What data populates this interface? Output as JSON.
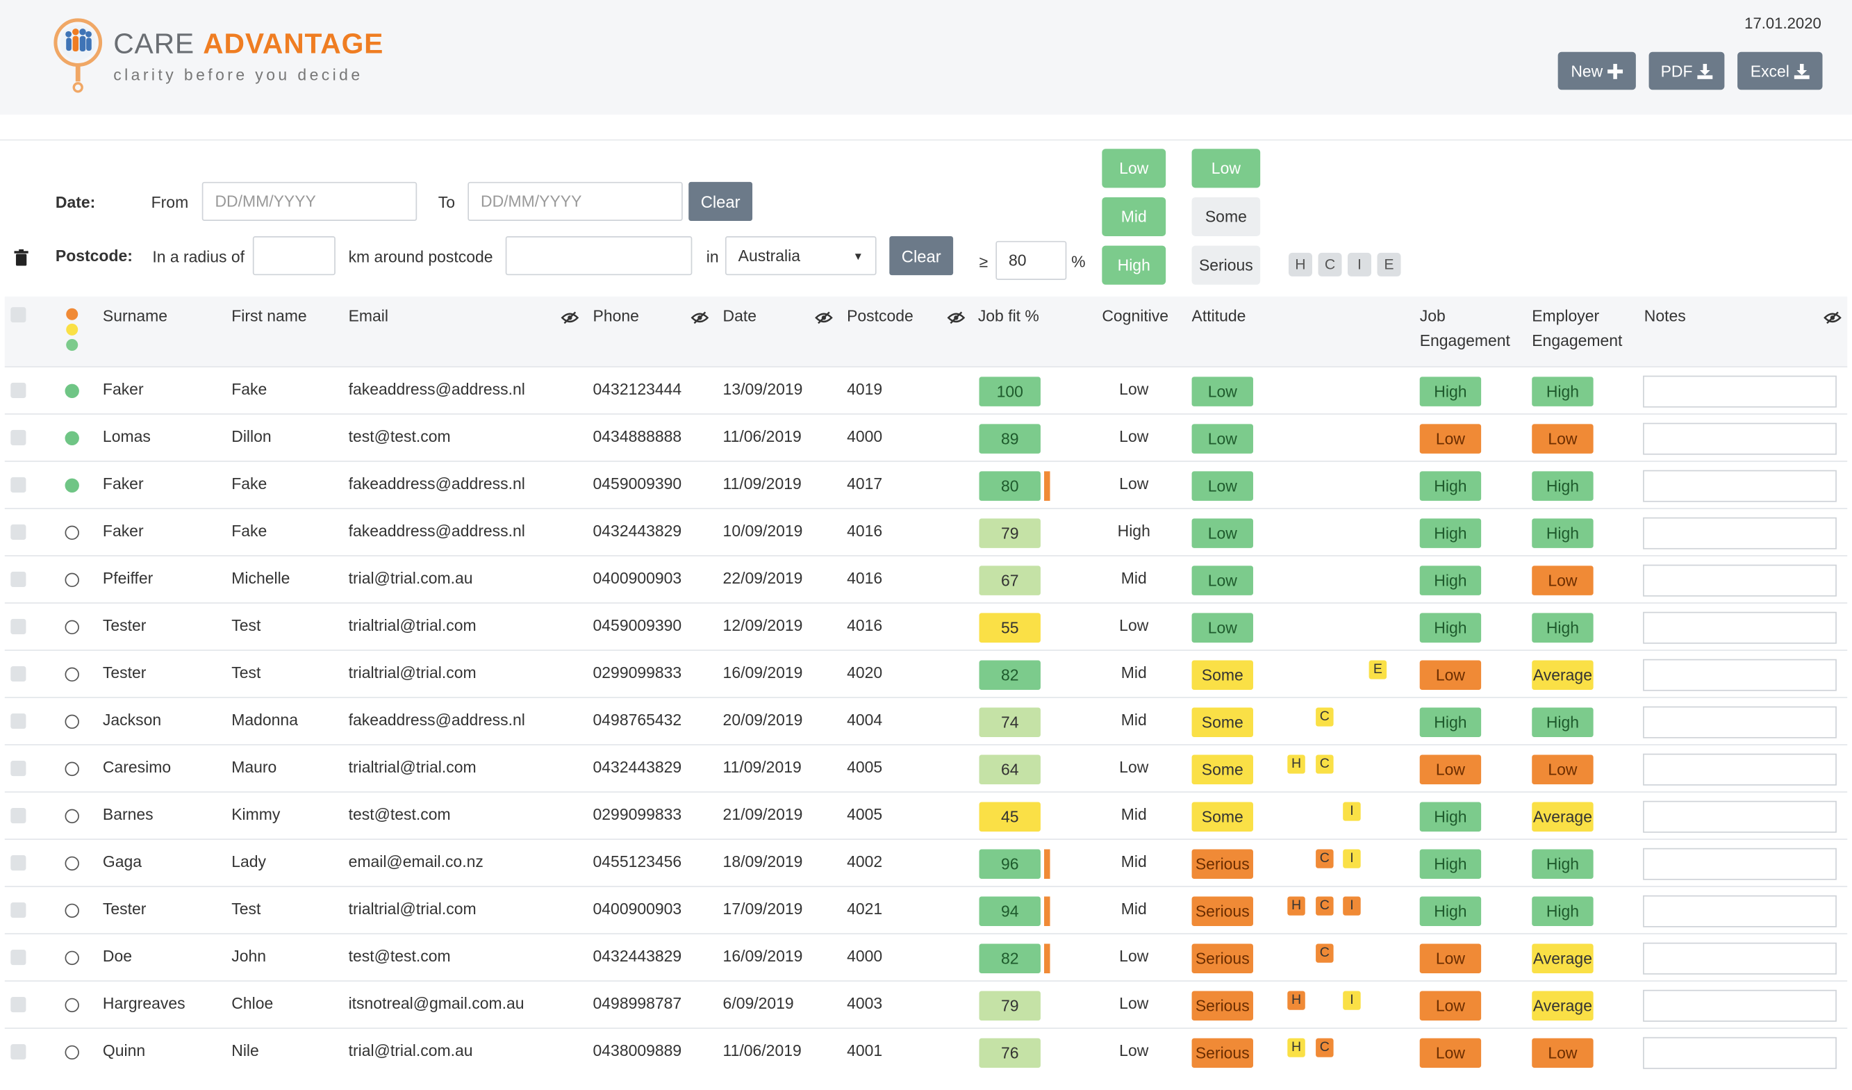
{
  "app": {
    "brand_part1": "CARE ",
    "brand_part2": "ADVANTAGE",
    "tagline": "clarity before you decide",
    "date": "17.01.2020",
    "buttons": {
      "new": "New",
      "pdf": "PDF",
      "excel": "Excel"
    }
  },
  "filters": {
    "date_label": "Date:",
    "from_label": "From",
    "from_placeholder": "DD/MM/YYYY",
    "to_label": "To",
    "to_placeholder": "DD/MM/YYYY",
    "clear": "Clear",
    "postcode_label": "Postcode:",
    "radius_label": "In a radius of",
    "km_label": "km around postcode",
    "in_label": "in",
    "country": "Australia",
    "clear2": "Clear",
    "gte": "≥",
    "jobfit_value": "80",
    "percent": "%",
    "cognitive_options": [
      "Low",
      "Mid",
      "High"
    ],
    "attitude_options": [
      "Low",
      "Some",
      "Serious"
    ],
    "chips": [
      "H",
      "C",
      "I",
      "E"
    ]
  },
  "colors": {
    "green": "#7ccb8c",
    "light_green": "#c5e2a6",
    "yellow": "#fae046",
    "orange": "#f08a36",
    "button": "#6c7a89"
  },
  "table": {
    "headers": {
      "surname": "Surname",
      "first_name": "First name",
      "email": "Email",
      "phone": "Phone",
      "date": "Date",
      "postcode": "Postcode",
      "job_fit": "Job fit %",
      "cognitive": "Cognitive",
      "attitude": "Attitude",
      "job_eng_1": "Job",
      "job_eng_2": "Engagement",
      "emp_eng_1": "Employer",
      "emp_eng_2": "Engagement",
      "notes": "Notes"
    },
    "rows": [
      {
        "status": "fill",
        "surname": "Faker",
        "first": "Fake",
        "email": "fakeaddress@address.nl",
        "phone": "0432123444",
        "date": "13/09/2019",
        "postcode": "4019",
        "jobfit": "100",
        "jobfit_c": "g",
        "jobfit_flag": false,
        "cognitive": "Low",
        "attitude": "Low",
        "attitude_c": "g",
        "flags": [],
        "job_eng": "High",
        "job_eng_c": "g",
        "emp_eng": "High",
        "emp_eng_c": "g"
      },
      {
        "status": "fill",
        "surname": "Lomas",
        "first": "Dillon",
        "email": "test@test.com",
        "phone": "0434888888",
        "date": "11/06/2019",
        "postcode": "4000",
        "jobfit": "89",
        "jobfit_c": "g",
        "jobfit_flag": false,
        "cognitive": "Low",
        "attitude": "Low",
        "attitude_c": "g",
        "flags": [],
        "job_eng": "Low",
        "job_eng_c": "o",
        "emp_eng": "Low",
        "emp_eng_c": "o"
      },
      {
        "status": "fill",
        "surname": "Faker",
        "first": "Fake",
        "email": "fakeaddress@address.nl",
        "phone": "0459009390",
        "date": "11/09/2019",
        "postcode": "4017",
        "jobfit": "80",
        "jobfit_c": "g",
        "jobfit_flag": true,
        "cognitive": "Low",
        "attitude": "Low",
        "attitude_c": "g",
        "flags": [],
        "job_eng": "High",
        "job_eng_c": "g",
        "emp_eng": "High",
        "emp_eng_c": "g"
      },
      {
        "status": "open",
        "surname": "Faker",
        "first": "Fake",
        "email": "fakeaddress@address.nl",
        "phone": "0432443829",
        "date": "10/09/2019",
        "postcode": "4016",
        "jobfit": "79",
        "jobfit_c": "lg",
        "jobfit_flag": false,
        "cognitive": "High",
        "attitude": "Low",
        "attitude_c": "g",
        "flags": [],
        "job_eng": "High",
        "job_eng_c": "g",
        "emp_eng": "High",
        "emp_eng_c": "g"
      },
      {
        "status": "open",
        "surname": "Pfeiffer",
        "first": "Michelle",
        "email": "trial@trial.com.au",
        "phone": "0400900903",
        "date": "22/09/2019",
        "postcode": "4016",
        "jobfit": "67",
        "jobfit_c": "lg",
        "jobfit_flag": false,
        "cognitive": "Mid",
        "attitude": "Low",
        "attitude_c": "g",
        "flags": [],
        "job_eng": "High",
        "job_eng_c": "g",
        "emp_eng": "Low",
        "emp_eng_c": "o"
      },
      {
        "status": "open",
        "surname": "Tester",
        "first": "Test",
        "email": "trialtrial@trial.com",
        "phone": "0459009390",
        "date": "12/09/2019",
        "postcode": "4016",
        "jobfit": "55",
        "jobfit_c": "y",
        "jobfit_flag": false,
        "cognitive": "Low",
        "attitude": "Low",
        "attitude_c": "g",
        "flags": [],
        "job_eng": "High",
        "job_eng_c": "g",
        "emp_eng": "High",
        "emp_eng_c": "g"
      },
      {
        "status": "open",
        "surname": "Tester",
        "first": "Test",
        "email": "trialtrial@trial.com",
        "phone": "0299099833",
        "date": "16/09/2019",
        "postcode": "4020",
        "jobfit": "82",
        "jobfit_c": "g",
        "jobfit_flag": false,
        "cognitive": "Mid",
        "attitude": "Some",
        "attitude_c": "y",
        "flags": [
          {
            "t": "E",
            "c": "y",
            "slot": 3
          }
        ],
        "job_eng": "Low",
        "job_eng_c": "o",
        "emp_eng": "Average",
        "emp_eng_c": "y"
      },
      {
        "status": "open",
        "surname": "Jackson",
        "first": "Madonna",
        "email": "fakeaddress@address.nl",
        "phone": "0498765432",
        "date": "20/09/2019",
        "postcode": "4004",
        "jobfit": "74",
        "jobfit_c": "lg",
        "jobfit_flag": false,
        "cognitive": "Mid",
        "attitude": "Some",
        "attitude_c": "y",
        "flags": [
          {
            "t": "C",
            "c": "y",
            "slot": 1
          }
        ],
        "job_eng": "High",
        "job_eng_c": "g",
        "emp_eng": "High",
        "emp_eng_c": "g"
      },
      {
        "status": "open",
        "surname": "Caresimo",
        "first": "Mauro",
        "email": "trialtrial@trial.com",
        "phone": "0432443829",
        "date": "11/09/2019",
        "postcode": "4005",
        "jobfit": "64",
        "jobfit_c": "lg",
        "jobfit_flag": false,
        "cognitive": "Low",
        "attitude": "Some",
        "attitude_c": "y",
        "flags": [
          {
            "t": "H",
            "c": "y",
            "slot": 0
          },
          {
            "t": "C",
            "c": "y",
            "slot": 1
          }
        ],
        "job_eng": "Low",
        "job_eng_c": "o",
        "emp_eng": "Low",
        "emp_eng_c": "o"
      },
      {
        "status": "open",
        "surname": "Barnes",
        "first": "Kimmy",
        "email": "test@test.com",
        "phone": "0299099833",
        "date": "21/09/2019",
        "postcode": "4005",
        "jobfit": "45",
        "jobfit_c": "y",
        "jobfit_flag": false,
        "cognitive": "Mid",
        "attitude": "Some",
        "attitude_c": "y",
        "flags": [
          {
            "t": "I",
            "c": "y",
            "slot": 2
          }
        ],
        "job_eng": "High",
        "job_eng_c": "g",
        "emp_eng": "Average",
        "emp_eng_c": "y"
      },
      {
        "status": "open",
        "surname": "Gaga",
        "first": "Lady",
        "email": "email@email.co.nz",
        "phone": "0455123456",
        "date": "18/09/2019",
        "postcode": "4002",
        "jobfit": "96",
        "jobfit_c": "g",
        "jobfit_flag": true,
        "cognitive": "Mid",
        "attitude": "Serious",
        "attitude_c": "o",
        "flags": [
          {
            "t": "C",
            "c": "o",
            "slot": 1
          },
          {
            "t": "I",
            "c": "y",
            "slot": 2
          }
        ],
        "job_eng": "High",
        "job_eng_c": "g",
        "emp_eng": "High",
        "emp_eng_c": "g"
      },
      {
        "status": "open",
        "surname": "Tester",
        "first": "Test",
        "email": "trialtrial@trial.com",
        "phone": "0400900903",
        "date": "17/09/2019",
        "postcode": "4021",
        "jobfit": "94",
        "jobfit_c": "g",
        "jobfit_flag": true,
        "cognitive": "Mid",
        "attitude": "Serious",
        "attitude_c": "o",
        "flags": [
          {
            "t": "H",
            "c": "o",
            "slot": 0
          },
          {
            "t": "C",
            "c": "o",
            "slot": 1
          },
          {
            "t": "I",
            "c": "o",
            "slot": 2
          }
        ],
        "job_eng": "High",
        "job_eng_c": "g",
        "emp_eng": "High",
        "emp_eng_c": "g"
      },
      {
        "status": "open",
        "surname": "Doe",
        "first": "John",
        "email": "test@test.com",
        "phone": "0432443829",
        "date": "16/09/2019",
        "postcode": "4000",
        "jobfit": "82",
        "jobfit_c": "g",
        "jobfit_flag": true,
        "cognitive": "Low",
        "attitude": "Serious",
        "attitude_c": "o",
        "flags": [
          {
            "t": "C",
            "c": "o",
            "slot": 1
          }
        ],
        "job_eng": "Low",
        "job_eng_c": "o",
        "emp_eng": "Average",
        "emp_eng_c": "y"
      },
      {
        "status": "open",
        "surname": "Hargreaves",
        "first": "Chloe",
        "email": "itsnotreal@gmail.com.au",
        "phone": "0498998787",
        "date": "6/09/2019",
        "postcode": "4003",
        "jobfit": "79",
        "jobfit_c": "lg",
        "jobfit_flag": false,
        "cognitive": "Low",
        "attitude": "Serious",
        "attitude_c": "o",
        "flags": [
          {
            "t": "H",
            "c": "o",
            "slot": 0
          },
          {
            "t": "I",
            "c": "y",
            "slot": 2
          }
        ],
        "job_eng": "Low",
        "job_eng_c": "o",
        "emp_eng": "Average",
        "emp_eng_c": "y"
      },
      {
        "status": "open",
        "surname": "Quinn",
        "first": "Nile",
        "email": "trial@trial.com.au",
        "phone": "0438009889",
        "date": "11/06/2019",
        "postcode": "4001",
        "jobfit": "76",
        "jobfit_c": "lg",
        "jobfit_flag": false,
        "cognitive": "Low",
        "attitude": "Serious",
        "attitude_c": "o",
        "flags": [
          {
            "t": "H",
            "c": "y",
            "slot": 0
          },
          {
            "t": "C",
            "c": "o",
            "slot": 1
          }
        ],
        "job_eng": "Low",
        "job_eng_c": "o",
        "emp_eng": "Low",
        "emp_eng_c": "o"
      }
    ]
  }
}
